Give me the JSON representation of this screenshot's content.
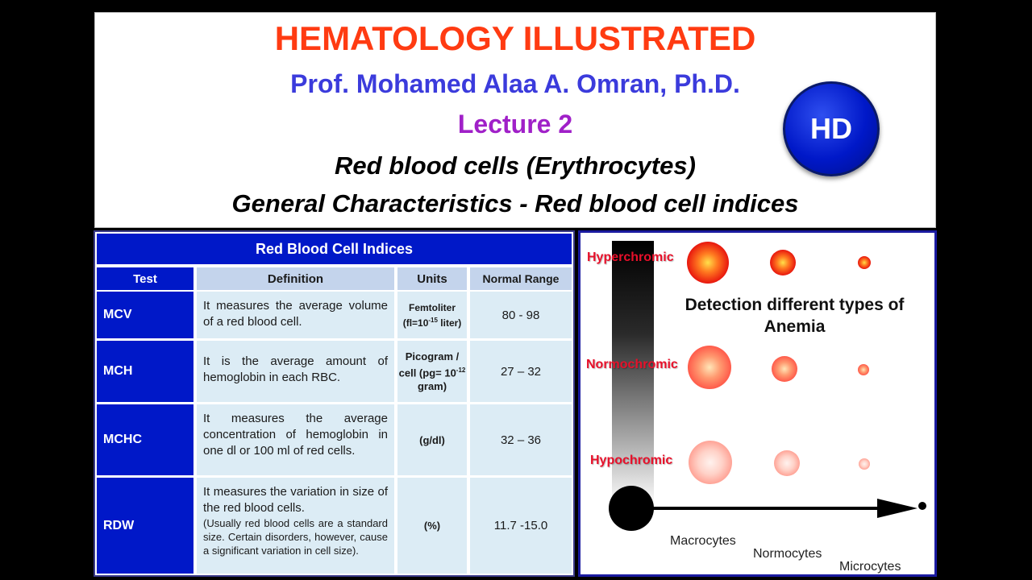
{
  "header": {
    "title": "HEMATOLOGY ILLUSTRATED",
    "author": "Prof. Mohamed Alaa A. Omran, Ph.D.",
    "lecture": "Lecture 2",
    "subtitle1": "Red blood cells (Erythrocytes)",
    "subtitle2": "General Characteristics - Red blood cell indices",
    "badge": "HD"
  },
  "table": {
    "caption": "Red Blood Cell Indices",
    "headers": [
      "Test",
      "Definition",
      "Units",
      "Normal Range"
    ],
    "rows": [
      {
        "test": "MCV",
        "definition": "It measures the average volume of a red blood cell.",
        "units_main": "Femtoliter (fl=10",
        "units_exp": "-15",
        "units_tail": " liter)",
        "range": "80 - 98"
      },
      {
        "test": "MCH",
        "definition": "It is the average amount of hemoglobin in each RBC.",
        "units_main": "Picogram / cell (pg= 10",
        "units_exp": "-12",
        "units_tail": " gram)",
        "range": "27 – 32"
      },
      {
        "test": "MCHC",
        "definition": "It measures the average concentration of hemoglobin in one dl or 100 ml of red cells.",
        "units_main": "(g/dl)",
        "range": "32 – 36"
      },
      {
        "test": "RDW",
        "definition": "It measures the variation in size of the red blood cells.",
        "definition_note": "(Usually red blood cells are a standard size. Certain disorders, however, cause a significant variation in cell size).",
        "units_main": "(%)",
        "range": "11.7 -15.0"
      }
    ]
  },
  "diagram": {
    "title": "Detection different types of Anemia",
    "rows": [
      "Hyperchromic",
      "Normochromic",
      "Hypochromic"
    ],
    "columns": [
      "Macrocytes",
      "Normocytes",
      "Microcytes"
    ],
    "colors": {
      "red_label": "#e8102a",
      "panel_border": "#1a1aa0",
      "table_blue": "#0018c8"
    }
  }
}
